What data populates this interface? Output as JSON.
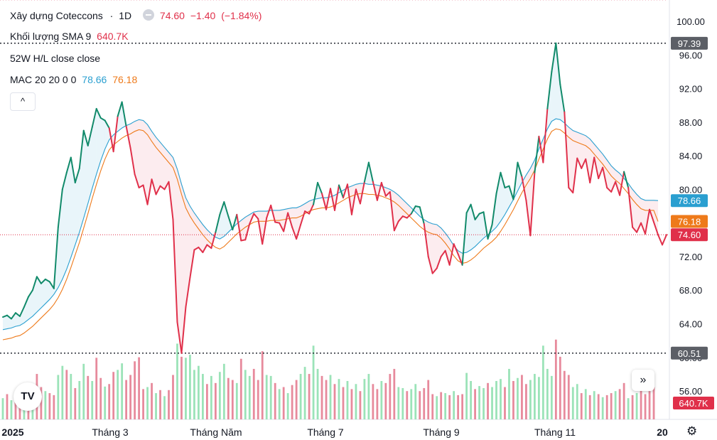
{
  "legend": {
    "symbol_name": "Xây dựng Coteccons",
    "separator": "·",
    "interval": "1D",
    "last": "74.60",
    "change": "−1.40",
    "change_pct": "(−1.84%)",
    "volume_label": "Khối lượng SMA 9",
    "volume_value": "640.7K",
    "hl_label": "52W H/L close close",
    "mac_label": "MAC 20 20 0 0",
    "mac_upper": "78.66",
    "mac_lower": "76.18"
  },
  "controls": {
    "collapse": "^",
    "logo": "TV",
    "scroll": "»",
    "settings": "⚙"
  },
  "colors": {
    "up": "#118a6a",
    "down": "#e0304a",
    "mac_upper": "#2a9fd0",
    "mac_lower": "#ee7a1a",
    "vol_up": "#9be3b8",
    "vol_down": "#e78a9c"
  },
  "chart_data": {
    "type": "line",
    "y_ticks": [
      "100.00",
      "96.00",
      "92.00",
      "88.00",
      "84.00",
      "80.00",
      "76.00",
      "72.00",
      "68.00",
      "64.00",
      "60.00",
      "56.00"
    ],
    "ylim": [
      54.9,
      101.2
    ],
    "x_labels": [
      "2025",
      "Tháng 3",
      "Tháng Năm",
      "Tháng 7",
      "Tháng 9",
      "Tháng 11",
      "20"
    ],
    "price": [
      64.8,
      65.0,
      64.6,
      65.3,
      64.9,
      66.0,
      67.2,
      68.0,
      69.6,
      68.8,
      69.3,
      69.0,
      68.2,
      75.5,
      80.0,
      82.0,
      83.8,
      80.8,
      82.5,
      87.0,
      85.2,
      87.4,
      89.6,
      88.5,
      88.2,
      87.3,
      84.5,
      88.7,
      90.4,
      87.5,
      84.9,
      81.8,
      80.2,
      80.5,
      78.2,
      81.2,
      79.4,
      80.4,
      80.0,
      80.9,
      76.4,
      64.2,
      60.5,
      66.0,
      69.5,
      72.8,
      73.1,
      72.5,
      73.4,
      73.0,
      74.9,
      77.0,
      78.5,
      76.8,
      75.2,
      77.0,
      73.9,
      74.0,
      75.9,
      77.1,
      76.5,
      73.5,
      76.6,
      78.1,
      76.1,
      76.0,
      75.0,
      77.2,
      75.5,
      74.1,
      75.8,
      77.4,
      77.1,
      78.2,
      80.8,
      79.5,
      77.6,
      80.1,
      77.5,
      80.5,
      79.0,
      80.6,
      77.0,
      80.0,
      78.3,
      80.9,
      83.2,
      80.9,
      78.7,
      80.8,
      79.2,
      79.7,
      75.1,
      76.2,
      76.8,
      76.6,
      77.1,
      78.0,
      77.9,
      75.9,
      72.0,
      70.0,
      70.6,
      72.0,
      72.7,
      71.0,
      73.5,
      72.3,
      71.0,
      77.2,
      78.2,
      76.4,
      77.1,
      77.3,
      74.1,
      75.8,
      79.5,
      82.0,
      80.2,
      80.4,
      78.8,
      83.2,
      81.5,
      78.7,
      74.5,
      82.0,
      86.3,
      83.2,
      89.6,
      94.0,
      97.4,
      92.5,
      89.2,
      80.2,
      79.6,
      83.7,
      82.5,
      83.6,
      80.8,
      83.8,
      81.3,
      82.6,
      80.2,
      79.7,
      80.9,
      79.3,
      82.1,
      80.2,
      75.5,
      74.9,
      76.0,
      74.7,
      77.6,
      76.1,
      74.6,
      73.4,
      74.6
    ],
    "mac_upper": [
      63.3,
      63.4,
      63.5,
      63.7,
      63.8,
      64.1,
      64.5,
      64.9,
      65.4,
      65.9,
      66.4,
      66.9,
      67.5,
      68.3,
      69.3,
      70.5,
      71.9,
      73.4,
      74.9,
      76.6,
      78.3,
      80.1,
      81.8,
      83.4,
      84.8,
      85.9,
      86.5,
      86.9,
      87.3,
      87.6,
      87.8,
      88.1,
      88.3,
      88.2,
      87.7,
      86.9,
      86.2,
      85.6,
      85.0,
      84.4,
      83.8,
      82.4,
      80.6,
      79.0,
      78.0,
      77.2,
      76.5,
      75.8,
      75.2,
      74.7,
      74.3,
      74.1,
      74.4,
      74.9,
      75.4,
      75.9,
      76.3,
      76.7,
      77.0,
      77.3,
      77.4,
      77.4,
      77.4,
      77.5,
      77.5,
      77.5,
      77.6,
      77.7,
      77.8,
      77.8,
      78.0,
      78.3,
      78.6,
      78.8,
      78.9,
      79.0,
      79.0,
      79.1,
      79.3,
      79.6,
      79.9,
      80.2,
      80.4,
      80.6,
      80.7,
      80.7,
      80.6,
      80.6,
      80.5,
      80.4,
      80.2,
      80.0,
      79.7,
      79.3,
      78.8,
      78.3,
      77.8,
      77.3,
      76.8,
      76.4,
      76.1,
      75.9,
      75.8,
      75.4,
      74.8,
      74.1,
      73.3,
      72.7,
      72.4,
      72.5,
      72.8,
      73.2,
      73.7,
      74.2,
      74.6,
      75.0,
      75.5,
      76.2,
      77.0,
      77.9,
      78.8,
      79.8,
      80.8,
      81.7,
      82.5,
      83.5,
      84.8,
      86.0,
      87.2,
      88.1,
      88.4,
      88.3,
      87.9,
      87.4,
      87.0,
      86.8,
      86.6,
      86.4,
      86.0,
      85.4,
      84.8,
      84.2,
      83.5,
      82.8,
      82.3,
      81.9,
      81.3,
      80.7,
      80.0,
      79.4,
      78.9,
      78.7,
      78.7,
      78.7,
      78.66
    ],
    "mac_lower": [
      62.1,
      62.2,
      62.3,
      62.5,
      62.6,
      62.9,
      63.3,
      63.7,
      64.2,
      64.7,
      65.2,
      65.7,
      66.3,
      67.1,
      68.1,
      69.3,
      70.7,
      72.2,
      73.7,
      75.4,
      77.1,
      78.9,
      80.6,
      82.2,
      83.6,
      84.7,
      85.3,
      85.7,
      86.1,
      86.4,
      86.6,
      86.9,
      87.1,
      87.0,
      86.5,
      85.7,
      85.0,
      84.4,
      83.8,
      83.2,
      82.6,
      81.2,
      79.4,
      77.8,
      76.8,
      76.0,
      75.3,
      74.6,
      74.0,
      73.5,
      73.1,
      72.9,
      73.2,
      73.7,
      74.2,
      74.7,
      75.1,
      75.5,
      75.8,
      76.1,
      76.2,
      76.2,
      76.2,
      76.3,
      76.3,
      76.3,
      76.4,
      76.5,
      76.6,
      76.6,
      76.8,
      77.1,
      77.4,
      77.6,
      77.7,
      77.8,
      77.8,
      77.9,
      78.1,
      78.4,
      78.7,
      79.0,
      79.2,
      79.4,
      79.5,
      79.5,
      79.4,
      79.4,
      79.3,
      79.2,
      79.0,
      78.8,
      78.5,
      78.1,
      77.6,
      77.1,
      76.6,
      76.1,
      75.6,
      75.2,
      74.9,
      74.7,
      74.6,
      74.2,
      73.6,
      72.9,
      72.1,
      71.5,
      71.2,
      71.3,
      71.6,
      72.0,
      72.5,
      73.0,
      73.4,
      73.8,
      74.3,
      75.0,
      75.8,
      76.7,
      77.6,
      78.6,
      79.6,
      80.5,
      81.3,
      82.3,
      83.6,
      84.8,
      86.0,
      86.9,
      87.2,
      87.1,
      86.7,
      86.2,
      85.8,
      85.6,
      85.4,
      85.2,
      84.8,
      84.2,
      83.6,
      83.0,
      82.3,
      81.6,
      81.1,
      80.7,
      80.1,
      79.5,
      78.8,
      78.2,
      77.7,
      77.5,
      77.5,
      77.5,
      76.18
    ],
    "volume_max_value": 1900,
    "volume": [
      [
        420,
        "u"
      ],
      [
        500,
        "d"
      ],
      [
        380,
        "u"
      ],
      [
        460,
        "d"
      ],
      [
        520,
        "d"
      ],
      [
        610,
        "u"
      ],
      [
        540,
        "d"
      ],
      [
        700,
        "u"
      ],
      [
        900,
        "d"
      ],
      [
        640,
        "d"
      ],
      [
        560,
        "u"
      ],
      [
        520,
        "d"
      ],
      [
        480,
        "d"
      ],
      [
        880,
        "u"
      ],
      [
        1060,
        "u"
      ],
      [
        980,
        "d"
      ],
      [
        900,
        "u"
      ],
      [
        620,
        "d"
      ],
      [
        760,
        "u"
      ],
      [
        1100,
        "u"
      ],
      [
        860,
        "d"
      ],
      [
        760,
        "u"
      ],
      [
        1220,
        "d"
      ],
      [
        820,
        "d"
      ],
      [
        650,
        "u"
      ],
      [
        700,
        "d"
      ],
      [
        940,
        "d"
      ],
      [
        980,
        "u"
      ],
      [
        1110,
        "u"
      ],
      [
        780,
        "d"
      ],
      [
        880,
        "d"
      ],
      [
        1150,
        "d"
      ],
      [
        1230,
        "d"
      ],
      [
        600,
        "d"
      ],
      [
        640,
        "u"
      ],
      [
        720,
        "d"
      ],
      [
        520,
        "u"
      ],
      [
        580,
        "d"
      ],
      [
        460,
        "u"
      ],
      [
        580,
        "d"
      ],
      [
        880,
        "d"
      ],
      [
        1500,
        "u"
      ],
      [
        1240,
        "d"
      ],
      [
        1220,
        "u"
      ],
      [
        1280,
        "u"
      ],
      [
        980,
        "u"
      ],
      [
        1060,
        "u"
      ],
      [
        900,
        "u"
      ],
      [
        700,
        "d"
      ],
      [
        860,
        "u"
      ],
      [
        720,
        "d"
      ],
      [
        940,
        "u"
      ],
      [
        1100,
        "u"
      ],
      [
        820,
        "d"
      ],
      [
        780,
        "d"
      ],
      [
        720,
        "u"
      ],
      [
        1200,
        "d"
      ],
      [
        980,
        "u"
      ],
      [
        860,
        "u"
      ],
      [
        1000,
        "d"
      ],
      [
        780,
        "d"
      ],
      [
        1350,
        "d"
      ],
      [
        880,
        "u"
      ],
      [
        860,
        "u"
      ],
      [
        720,
        "d"
      ],
      [
        600,
        "u"
      ],
      [
        640,
        "d"
      ],
      [
        520,
        "u"
      ],
      [
        680,
        "d"
      ],
      [
        780,
        "d"
      ],
      [
        900,
        "u"
      ],
      [
        1040,
        "u"
      ],
      [
        900,
        "d"
      ],
      [
        1460,
        "u"
      ],
      [
        1000,
        "u"
      ],
      [
        860,
        "d"
      ],
      [
        780,
        "d"
      ],
      [
        880,
        "u"
      ],
      [
        700,
        "d"
      ],
      [
        800,
        "u"
      ],
      [
        640,
        "d"
      ],
      [
        760,
        "u"
      ],
      [
        600,
        "d"
      ],
      [
        700,
        "u"
      ],
      [
        560,
        "d"
      ],
      [
        800,
        "u"
      ],
      [
        900,
        "u"
      ],
      [
        700,
        "d"
      ],
      [
        600,
        "d"
      ],
      [
        760,
        "u"
      ],
      [
        720,
        "d"
      ],
      [
        900,
        "d"
      ],
      [
        1000,
        "d"
      ],
      [
        640,
        "u"
      ],
      [
        620,
        "u"
      ],
      [
        560,
        "d"
      ],
      [
        600,
        "u"
      ],
      [
        700,
        "u"
      ],
      [
        560,
        "d"
      ],
      [
        620,
        "d"
      ],
      [
        780,
        "d"
      ],
      [
        500,
        "d"
      ],
      [
        460,
        "u"
      ],
      [
        540,
        "d"
      ],
      [
        520,
        "u"
      ],
      [
        480,
        "d"
      ],
      [
        560,
        "u"
      ],
      [
        480,
        "d"
      ],
      [
        500,
        "d"
      ],
      [
        920,
        "u"
      ],
      [
        760,
        "u"
      ],
      [
        600,
        "d"
      ],
      [
        660,
        "u"
      ],
      [
        620,
        "u"
      ],
      [
        720,
        "d"
      ],
      [
        640,
        "u"
      ],
      [
        760,
        "u"
      ],
      [
        800,
        "u"
      ],
      [
        640,
        "d"
      ],
      [
        1000,
        "u"
      ],
      [
        760,
        "d"
      ],
      [
        820,
        "u"
      ],
      [
        880,
        "d"
      ],
      [
        700,
        "d"
      ],
      [
        780,
        "u"
      ],
      [
        900,
        "u"
      ],
      [
        840,
        "u"
      ],
      [
        1460,
        "u"
      ],
      [
        1000,
        "u"
      ],
      [
        860,
        "u"
      ],
      [
        1580,
        "d"
      ],
      [
        1240,
        "d"
      ],
      [
        960,
        "d"
      ],
      [
        880,
        "d"
      ],
      [
        640,
        "u"
      ],
      [
        700,
        "u"
      ],
      [
        520,
        "d"
      ],
      [
        600,
        "u"
      ],
      [
        480,
        "d"
      ],
      [
        560,
        "u"
      ],
      [
        500,
        "d"
      ],
      [
        440,
        "u"
      ],
      [
        480,
        "d"
      ],
      [
        520,
        "d"
      ],
      [
        560,
        "u"
      ],
      [
        600,
        "d"
      ],
      [
        720,
        "d"
      ],
      [
        420,
        "u"
      ],
      [
        480,
        "d"
      ],
      [
        520,
        "u"
      ],
      [
        600,
        "d"
      ],
      [
        500,
        "d"
      ],
      [
        560,
        "d"
      ],
      [
        640,
        "d"
      ]
    ],
    "price_labels": [
      {
        "text": "97.39",
        "value": 97.39,
        "color": "#5c5f66"
      },
      {
        "text": "78.66",
        "value": 78.66,
        "color": "#2a9fd0"
      },
      {
        "text": "76.18",
        "value": 76.18,
        "color": "#ee7a1a"
      },
      {
        "text": "74.60",
        "value": 74.6,
        "color": "#e0304a"
      },
      {
        "text": "60.51",
        "value": 60.51,
        "color": "#5c5f66"
      }
    ],
    "volume_label": {
      "text": "640.7K",
      "color": "#e0304a"
    }
  }
}
